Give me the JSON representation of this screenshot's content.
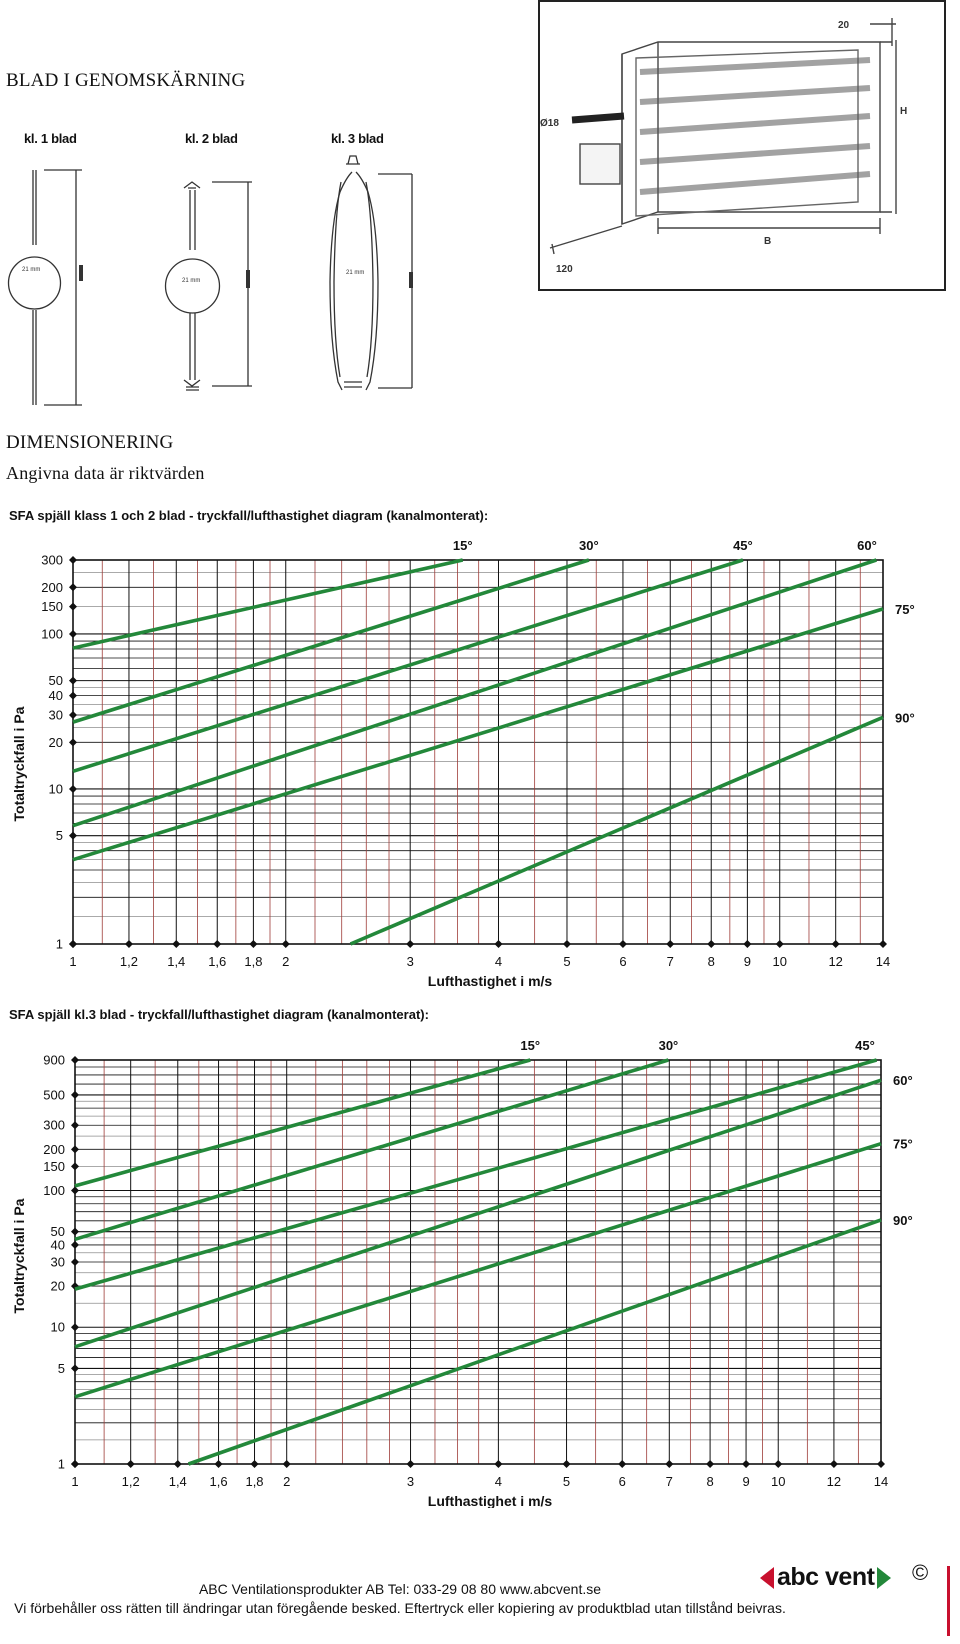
{
  "sections": {
    "cross_section_title": "BLAD I GENOMSKÄRNING",
    "dimension_title": "DIMENSIONERING",
    "dimension_subtitle": "Angivna data är riktvärden"
  },
  "blade_labels": [
    "kl. 1 blad",
    "kl. 2 blad",
    "kl. 3 blad"
  ],
  "blade_size_text": "21 mm",
  "damper_drawing": {
    "top_dim": "20",
    "height_dim": "H",
    "width_dim": "B",
    "depth_dim": "120",
    "shaft_dim": "Ø18"
  },
  "chart_data": [
    {
      "type": "line",
      "title": "SFA spjäll klass 1 och 2 blad - tryckfall/lufthastighet diagram (kanalmonterat):",
      "xlabel": "Lufthastighet i m/s",
      "ylabel": "Totaltryckfall i Pa",
      "x_scale": "log",
      "y_scale": "log",
      "xlim": [
        1,
        14
      ],
      "ylim": [
        1,
        300
      ],
      "x_ticks": [
        "1",
        "1,2",
        "1,4",
        "1,6",
        "1,8",
        "2",
        "3",
        "4",
        "5",
        "6",
        "7",
        "8",
        "9",
        "10",
        "12",
        "14"
      ],
      "y_ticks": [
        "1",
        "5",
        "10",
        "20",
        "30",
        "40",
        "50",
        "100",
        "150",
        "200",
        "300"
      ],
      "series": [
        {
          "name": "15°",
          "x": [
            1,
            3.56
          ],
          "y": [
            81,
            300
          ]
        },
        {
          "name": "30°",
          "x": [
            1,
            5.37
          ],
          "y": [
            27,
            300
          ]
        },
        {
          "name": "45°",
          "x": [
            1,
            8.87
          ],
          "y": [
            13,
            300
          ]
        },
        {
          "name": "60°",
          "x": [
            1,
            13.7
          ],
          "y": [
            5.8,
            300
          ]
        },
        {
          "name": "75°",
          "x": [
            1,
            14
          ],
          "y": [
            3.5,
            145
          ]
        },
        {
          "name": "90°",
          "x": [
            2.47,
            14
          ],
          "y": [
            1,
            29
          ]
        }
      ],
      "colors": {
        "lines": "#23883a",
        "grid_major": "#111111",
        "grid_vertical_minor": "#9e3c38"
      }
    },
    {
      "type": "line",
      "title": "SFA spjäll kl.3 blad - tryckfall/lufthastighet diagram (kanalmonterat):",
      "xlabel": "Lufthastighet i m/s",
      "ylabel": "Totaltryckfall i Pa",
      "x_scale": "log",
      "y_scale": "log",
      "xlim": [
        1,
        14
      ],
      "ylim": [
        1,
        900
      ],
      "x_ticks": [
        "1",
        "1,2",
        "1,4",
        "1,6",
        "1,8",
        "2",
        "3",
        "4",
        "5",
        "6",
        "7",
        "8",
        "9",
        "10",
        "12",
        "14"
      ],
      "y_ticks": [
        "1",
        "5",
        "10",
        "20",
        "30",
        "40",
        "50",
        "100",
        "150",
        "200",
        "300",
        "500",
        "900"
      ],
      "series": [
        {
          "name": "15°",
          "x": [
            1,
            4.44
          ],
          "y": [
            108,
            900
          ]
        },
        {
          "name": "30°",
          "x": [
            1,
            6.98
          ],
          "y": [
            44,
            900
          ]
        },
        {
          "name": "45°",
          "x": [
            1,
            13.8
          ],
          "y": [
            19,
            900
          ]
        },
        {
          "name": "60°",
          "x": [
            1,
            14
          ],
          "y": [
            7.2,
            640
          ]
        },
        {
          "name": "75°",
          "x": [
            1,
            14
          ],
          "y": [
            3.1,
            220
          ]
        },
        {
          "name": "90°",
          "x": [
            1.45,
            14
          ],
          "y": [
            1,
            61
          ]
        }
      ],
      "colors": {
        "lines": "#23883a",
        "grid_major": "#111111",
        "grid_vertical_minor": "#9e3c38"
      }
    }
  ],
  "footer": {
    "line1": "ABC Ventilationsprodukter AB Tel: 033-29 08 80 www.abcvent.se",
    "line2": "Vi förbehåller oss rätten till ändringar utan föregående besked. Eftertryck eller kopiering av produktblad utan tillstånd beivras.",
    "logo_text": "abc vent",
    "copyright": "©"
  }
}
